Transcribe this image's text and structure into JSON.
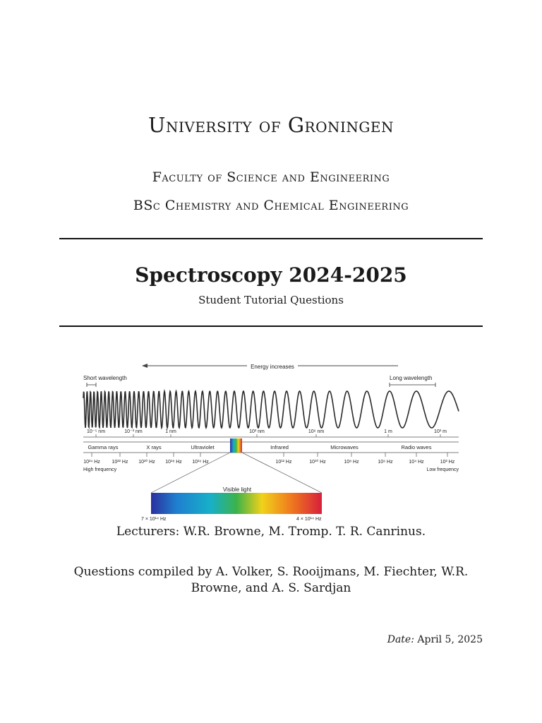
{
  "header": {
    "university": "University of Groningen",
    "faculty": "Faculty of Science and Engineering",
    "program": "BSc Chemistry and Chemical Engineering"
  },
  "title": "Spectroscopy 2024-2025",
  "subtitle": "Student Tutorial Questions",
  "figure": {
    "energy_label": "Energy increases",
    "short_wavelength": "Short wavelength",
    "long_wavelength": "Long wavelength",
    "wavelength_ticks": [
      "10⁻⁵ nm",
      "10⁻³ nm",
      "1 nm",
      "10³ nm",
      "10⁶ nm",
      "1 m",
      "10³ m"
    ],
    "regions": [
      "Gamma rays",
      "X rays",
      "Ultraviolet",
      "Infrared",
      "Microwaves",
      "Radio waves"
    ],
    "frequency_ticks": [
      "10²⁴ Hz",
      "10²² Hz",
      "10²⁰ Hz",
      "10¹⁸ Hz",
      "10¹⁶ Hz",
      "10¹² Hz",
      "10¹⁰ Hz",
      "10⁸ Hz",
      "10⁶ Hz",
      "10⁴ Hz",
      "10² Hz"
    ],
    "high_frequency": "High frequency",
    "low_frequency": "Low frequency",
    "visible_label": "Visible light",
    "visible_low": "7 × 10¹⁴ Hz",
    "visible_high": "4 × 10¹⁴ Hz"
  },
  "lecturers": "Lecturers: W.R. Browne, M. Tromp. T. R. Canrinus.",
  "compiled": "Questions compiled by A. Volker, S. Rooijmans, M. Fiechter, W.R. Browne, and A. S. Sardjan",
  "date": {
    "label": "Date:",
    "value": "April 5, 2025"
  }
}
